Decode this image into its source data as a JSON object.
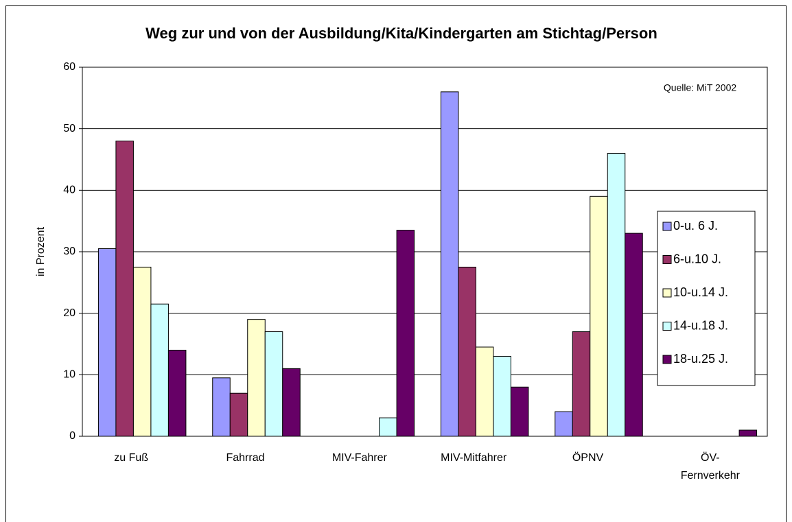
{
  "chart_data": {
    "type": "bar",
    "title": "Weg zur und von der Ausbildung/Kita/Kindergarten am Stichtag/Person",
    "annotation": "Quelle: MiT 2002",
    "y_label": "in Prozent",
    "categories": [
      "zu Fuß",
      "Fahrrad",
      "MIV-Fahrer",
      "MIV-Mitfahrer",
      "ÖPNV",
      "ÖV-Fernverkehr"
    ],
    "series": [
      {
        "name": "0-u. 6 J.",
        "color": "#9999ff",
        "values": [
          30.5,
          9.5,
          0,
          56,
          4,
          0
        ]
      },
      {
        "name": "6-u.10 J.",
        "color": "#993366",
        "values": [
          48,
          7,
          0,
          27.5,
          17,
          0
        ]
      },
      {
        "name": "10-u.14 J.",
        "color": "#ffffcc",
        "values": [
          27.5,
          19,
          0,
          14.5,
          39,
          0
        ]
      },
      {
        "name": "14-u.18 J.",
        "color": "#ccffff",
        "values": [
          21.5,
          17,
          3,
          13,
          46,
          0
        ]
      },
      {
        "name": "18-u.25 J.",
        "color": "#660066",
        "values": [
          14,
          11,
          33.5,
          8,
          33,
          1
        ]
      }
    ],
    "ylim": [
      0,
      60
    ],
    "yticks": [
      0,
      10,
      20,
      30,
      40,
      50,
      60
    ],
    "grid": true,
    "legend": "right"
  }
}
